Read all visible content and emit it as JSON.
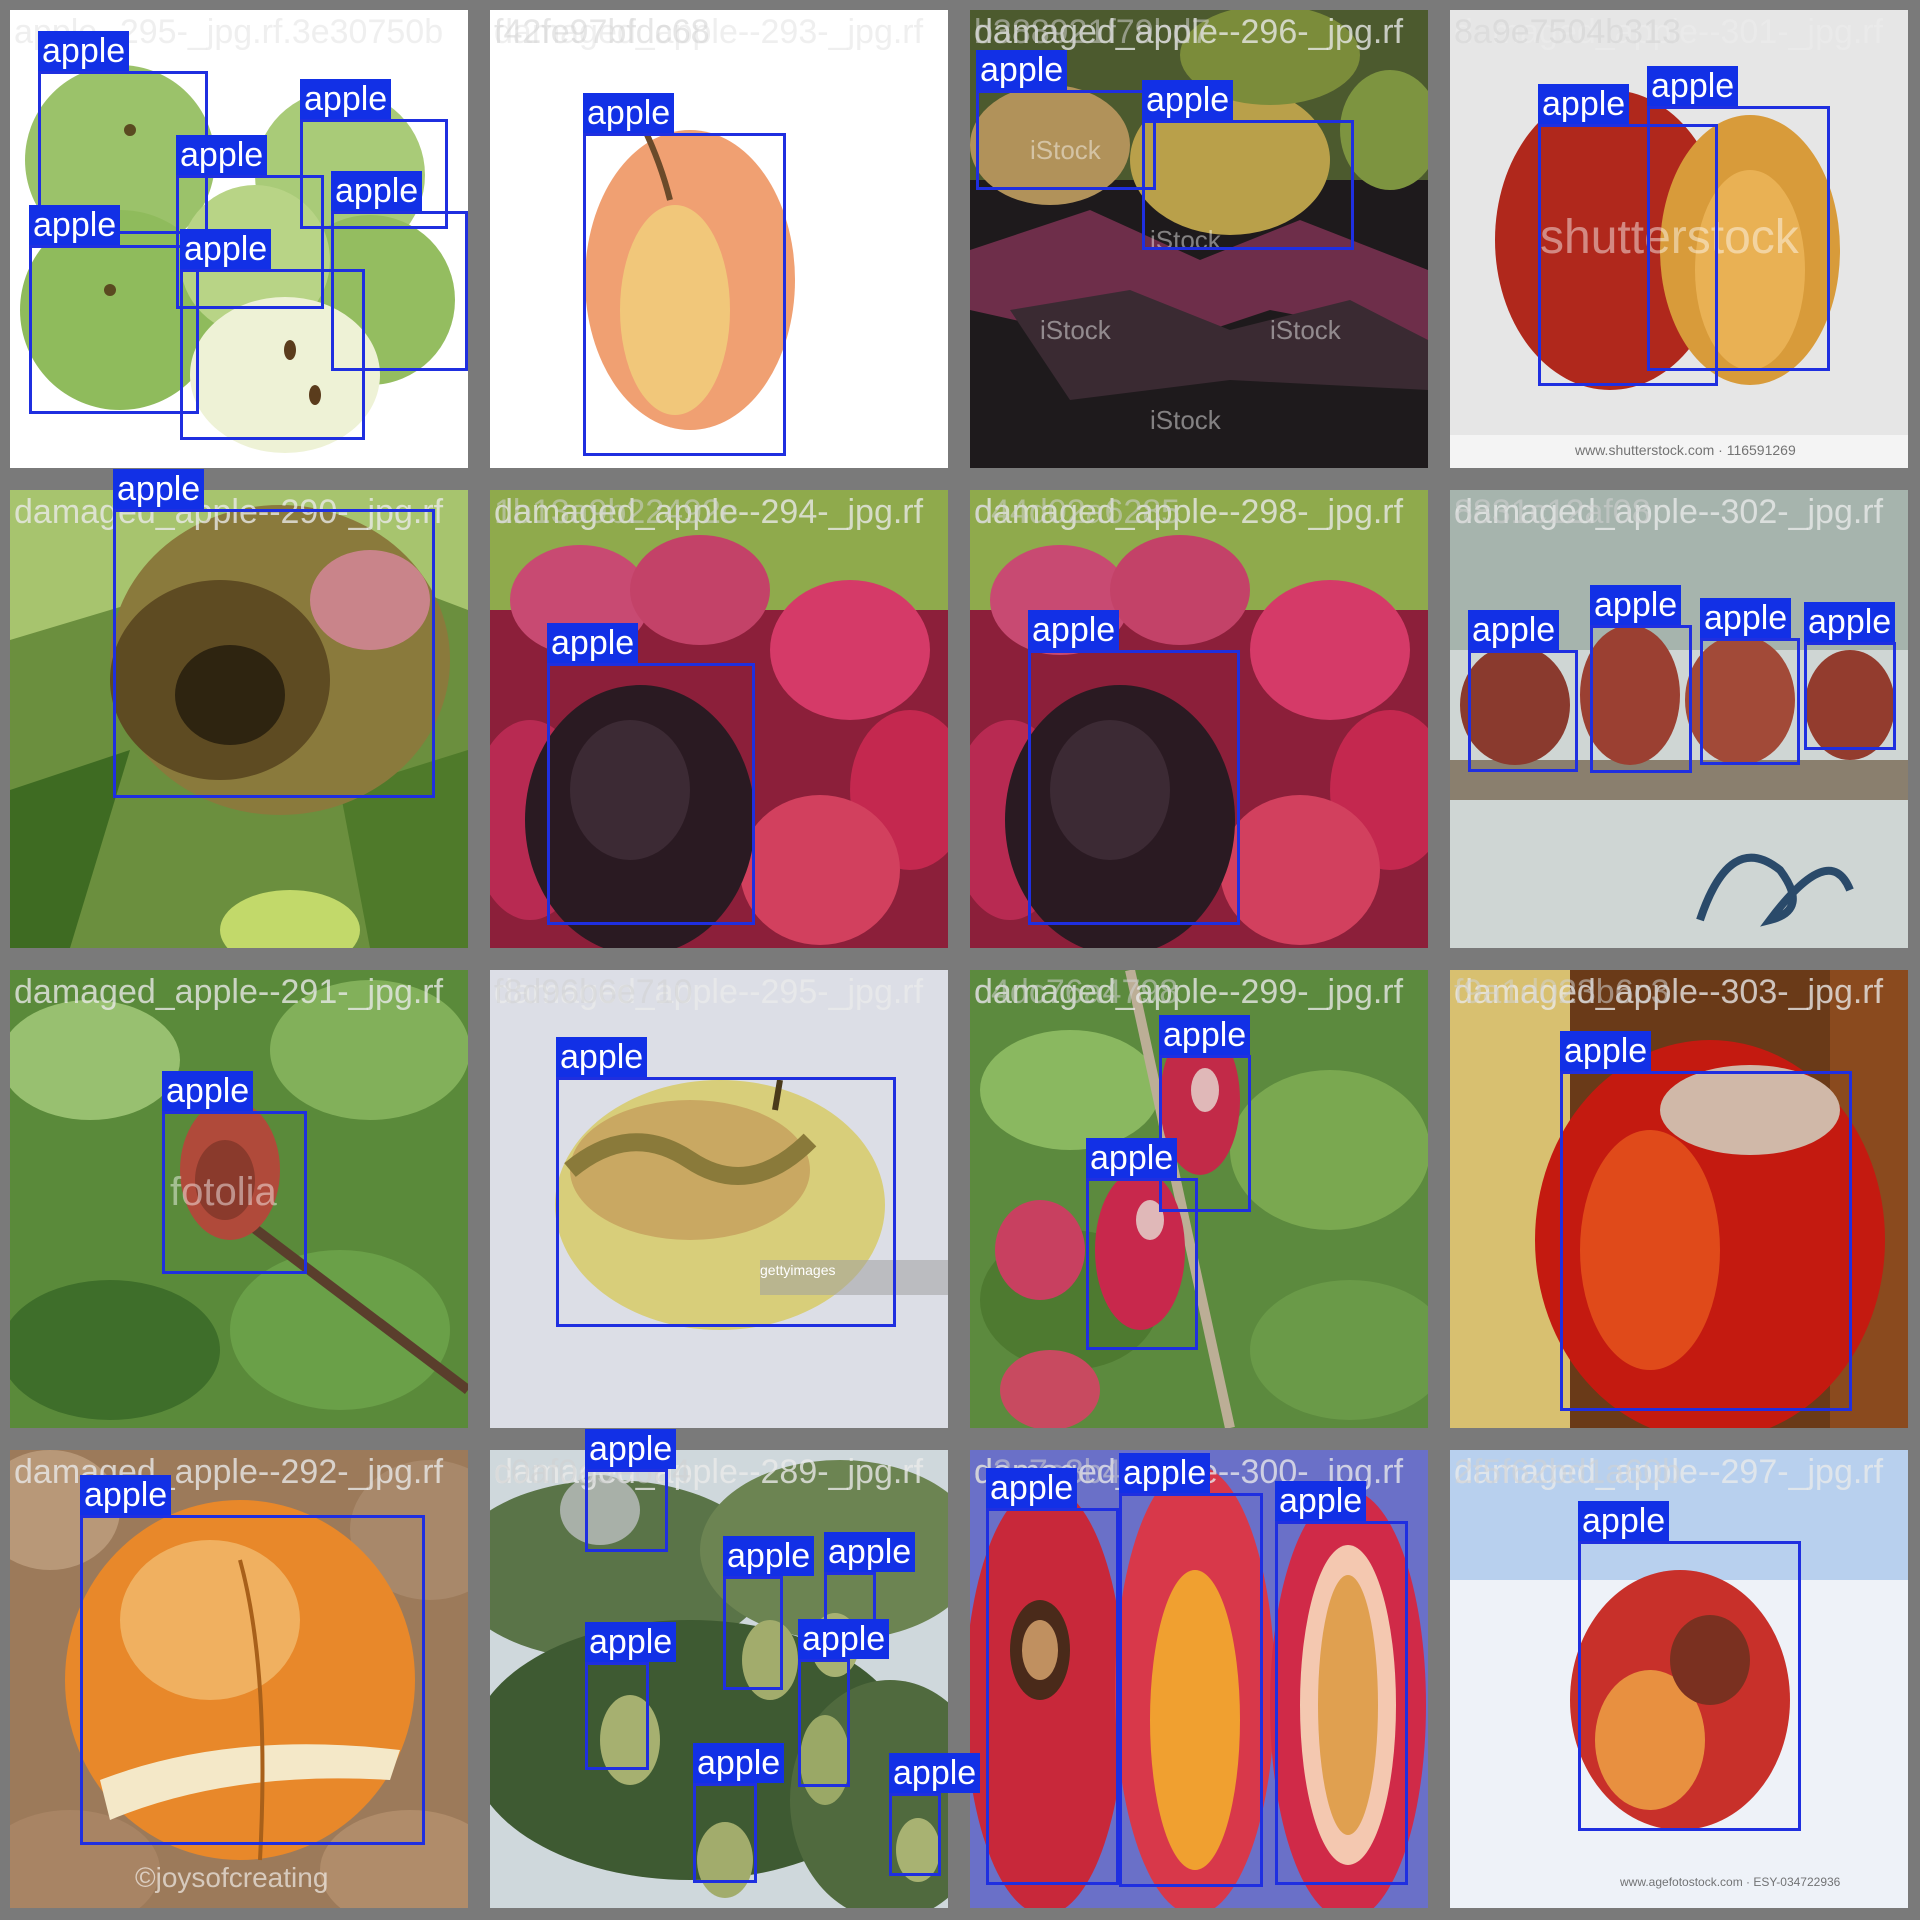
{
  "label": "apple",
  "colors": {
    "box": "#1f2fe0",
    "label_bg": "#1230e6",
    "label_text": "#ffffff",
    "frame": "#7a7a7a"
  },
  "tiles": [
    {
      "filename": "apple--295-_jpg.rf.3e30750b",
      "overlay_filename": "",
      "watermark": ""
    },
    {
      "filename": "damaged_apple--293-_jpg.rf",
      "overlay_filename": "f42fe97bfdc68",
      "watermark": ""
    },
    {
      "filename": "damaged_apple--296-_jpg.rf",
      "overlay_filename": "b388921f79bd7",
      "watermark": "iStock"
    },
    {
      "filename": "damaged_apple--301-_jpg.rf",
      "overlay_filename": "8a9e7504b313",
      "watermark": "shutterstock",
      "caption": "www.shutterstock.com · 116591269"
    },
    {
      "filename": "damaged_apple--290-_jpg.rf",
      "overlay_filename": "",
      "watermark": ""
    },
    {
      "filename": "damaged_apple--294-_jpg.rf",
      "overlay_filename": "1b13a9b22492c",
      "watermark": ""
    },
    {
      "filename": "damaged_apple--298-_jpg.rf",
      "overlay_filename": "c44d02a6285",
      "watermark": ""
    },
    {
      "filename": "damaged_apple--302-_jpg.rf",
      "overlay_filename": "8831c12af08",
      "watermark": ""
    },
    {
      "filename": "damaged_apple--291-_jpg.rf",
      "overlay_filename": "",
      "watermark": "fotolia"
    },
    {
      "filename": "damaged_apple--295-_jpg.rf",
      "overlay_filename": "f8d96b6e710",
      "watermark": "gettyimages"
    },
    {
      "filename": "damaged_apple--299-_jpg.rf",
      "overlay_filename": "c4dc76a4798",
      "watermark": ""
    },
    {
      "filename": "damaged_apple--303-_jpg.rf",
      "overlay_filename": "f9a1d023b6c3",
      "watermark": ""
    },
    {
      "filename": "damaged_apple--292-_jpg.rf",
      "overlay_filename": "",
      "watermark": "©joysofcreating"
    },
    {
      "filename": "damaged_apple--289-_jpg.rf",
      "overlay_filename": "c0af0a9e6b4",
      "watermark": ""
    },
    {
      "filename": "damaged_apple--300-_jpg.rf",
      "overlay_filename": "d2c7c8b4e8",
      "watermark": ""
    },
    {
      "filename": "damaged_apple--297-_jpg.rf",
      "overlay_filename": "2f5f62bd1a60b",
      "watermark": "",
      "caption": "www.agefotostock.com · ESY-034722936"
    }
  ]
}
